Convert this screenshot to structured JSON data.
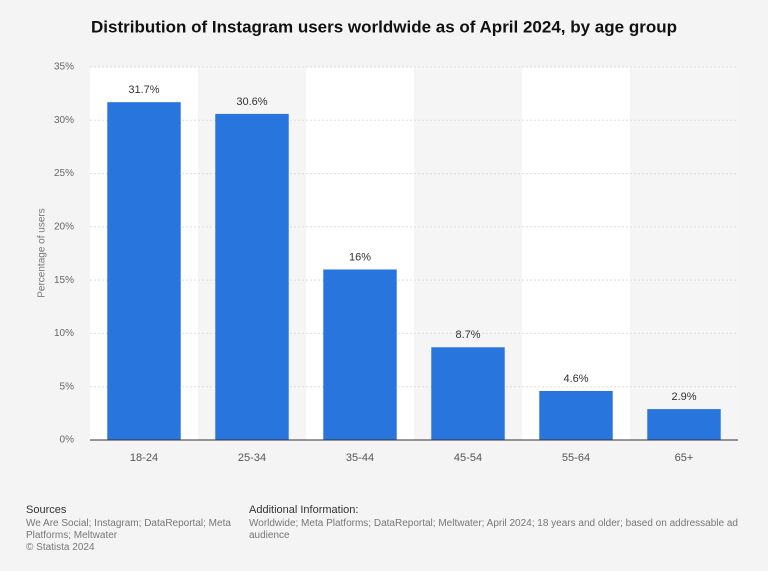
{
  "chart_data": {
    "type": "bar",
    "title": "Distribution of Instagram users worldwide as of April 2024, by age group",
    "y_label": "Percentage of users",
    "categories": [
      "18-24",
      "25-34",
      "35-44",
      "45-54",
      "55-64",
      "65+"
    ],
    "values": [
      31.7,
      30.6,
      16,
      8.7,
      4.6,
      2.9
    ],
    "value_labels": [
      "31.7%",
      "30.6%",
      "16%",
      "8.7%",
      "4.6%",
      "2.9%"
    ],
    "color": "#2876dd",
    "ylim": [
      0,
      35
    ],
    "yticks": [
      {
        "value": 0,
        "label": "0%"
      },
      {
        "value": 5,
        "label": "5%"
      },
      {
        "value": 10,
        "label": "10%"
      },
      {
        "value": 15,
        "label": "15%"
      },
      {
        "value": 20,
        "label": "20%"
      },
      {
        "value": 25,
        "label": "25%"
      },
      {
        "value": 30,
        "label": "30%"
      },
      {
        "value": 35,
        "label": "35%"
      }
    ],
    "grid": true
  },
  "footer": {
    "sources_title": "Sources",
    "sources": "We Are Social; Instagram; DataReportal; Meta Platforms; Meltwater",
    "copyright": "© Statista 2024",
    "info_title": "Additional Information:",
    "info": "Worldwide; Meta Platforms; DataReportal; Meltwater; April 2024; 18 years and older; based on addressable ad audience"
  }
}
